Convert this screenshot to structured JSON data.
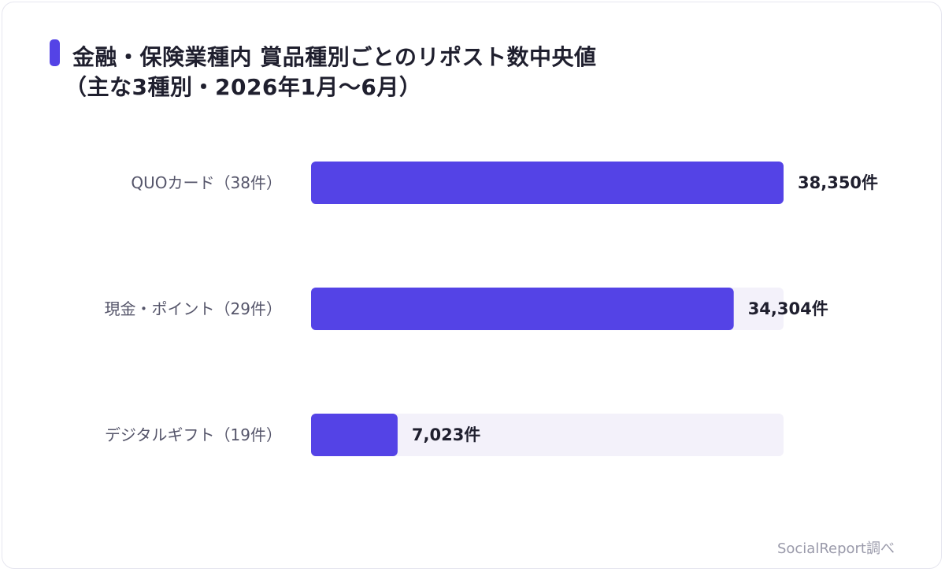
{
  "title": "金融・保険業種内 賞品種別ごとのリポスト数中央値",
  "subtitle": "（主な3種別・2026年1月〜6月）",
  "source": "SocialReport調べ",
  "colors": {
    "bar": "#5443e6",
    "track": "#f3f1fa",
    "accent": "#5443e6",
    "label": "#55556a",
    "value": "#1f1f2e"
  },
  "chart_data": {
    "type": "bar",
    "orientation": "horizontal",
    "categories": [
      "QUOカード（38件）",
      "現金・ポイント（29件）",
      "デジタルギフト（19件）"
    ],
    "values": [
      38350,
      34304,
      7023
    ],
    "value_labels": [
      "38,350件",
      "34,304件",
      "7,023件"
    ],
    "xlim": [
      0,
      38350
    ],
    "grid": false
  }
}
